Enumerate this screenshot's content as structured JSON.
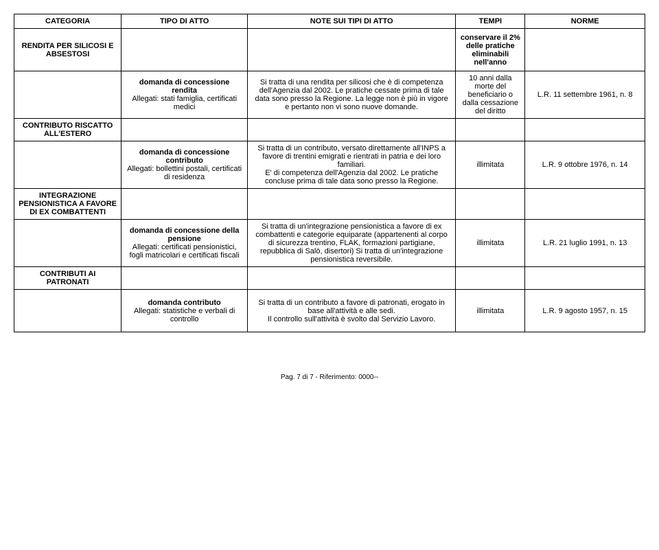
{
  "headers": {
    "categoria": "CATEGORIA",
    "tipo": "TIPO DI ATTO",
    "note": "NOTE SUI TIPI DI ATTO",
    "tempi": "TEMPI",
    "norme": "NORME"
  },
  "rows": {
    "r1": {
      "categoria": "RENDITA PER SILICOSI E ABSESTOSI",
      "tempi": "conservare il 2% delle pratiche eliminabili nell'anno"
    },
    "r2": {
      "tipo": "domanda di concessione rendita\nAllegati: stati famiglia, certificati medici",
      "note": "Si tratta di una rendita per silicosi che è di competenza dell'Agenzia dal 2002. Le pratiche cessate prima di tale data sono presso la Regione. La legge non è più in vigore e pertanto non vi sono nuove domande.",
      "tempi": "10 anni dalla morte del beneficiario o dalla cessazione del diritto",
      "norme": "L.R. 11 settembre 1961, n. 8"
    },
    "r3": {
      "categoria": "CONTRIBUTO RISCATTO ALL'ESTERO"
    },
    "r4": {
      "tipo": "domanda di concessione contributo\nAllegati: bollettini postali, certificati di residenza",
      "note": "Si tratta di un contributo, versato direttamente all'INPS a favore di trentini emigrati e rientrati in patria e dei loro familiari.\nE' di competenza dell'Agenzia dal 2002. Le pratiche concluse prima di tale data sono presso la Regione.",
      "tempi": "illimitata",
      "norme": "L.R. 9 ottobre 1976, n. 14"
    },
    "r5": {
      "categoria": "INTEGRAZIONE PENSIONISTICA A FAVORE DI EX COMBATTENTI"
    },
    "r6": {
      "tipo": "domanda di concessione della pensione\nAllegati: certificati pensionistici, fogli matricolari e certificati fiscali",
      "note": "Si tratta di un'integrazione pensionistica a favore di ex combattenti e categorie equiparate (appartenenti al corpo di sicurezza trentino, FLAK, formazioni partigiane, repubblica di Salò, disertori) Si tratta di un'integrazione pensionistica reversibile.",
      "tempi": "illimitata",
      "norme": "L.R. 21 luglio 1991, n. 13"
    },
    "r7": {
      "categoria": "CONTRIBUTI AI PATRONATI"
    },
    "r8": {
      "tipo": "domanda contributo\nAllegati: statistiche e verbali di controllo",
      "note": "Si tratta di un contributo a favore di patronati, erogato in base all'attività e alle sedi.\nIl controllo sull'attività è svolto dal Servizio Lavoro.",
      "tempi": "illimitata",
      "norme": "L.R. 9 agosto 1957, n. 15"
    }
  },
  "footer": "Pag. 7 di 7  -  Riferimento: 0000--"
}
